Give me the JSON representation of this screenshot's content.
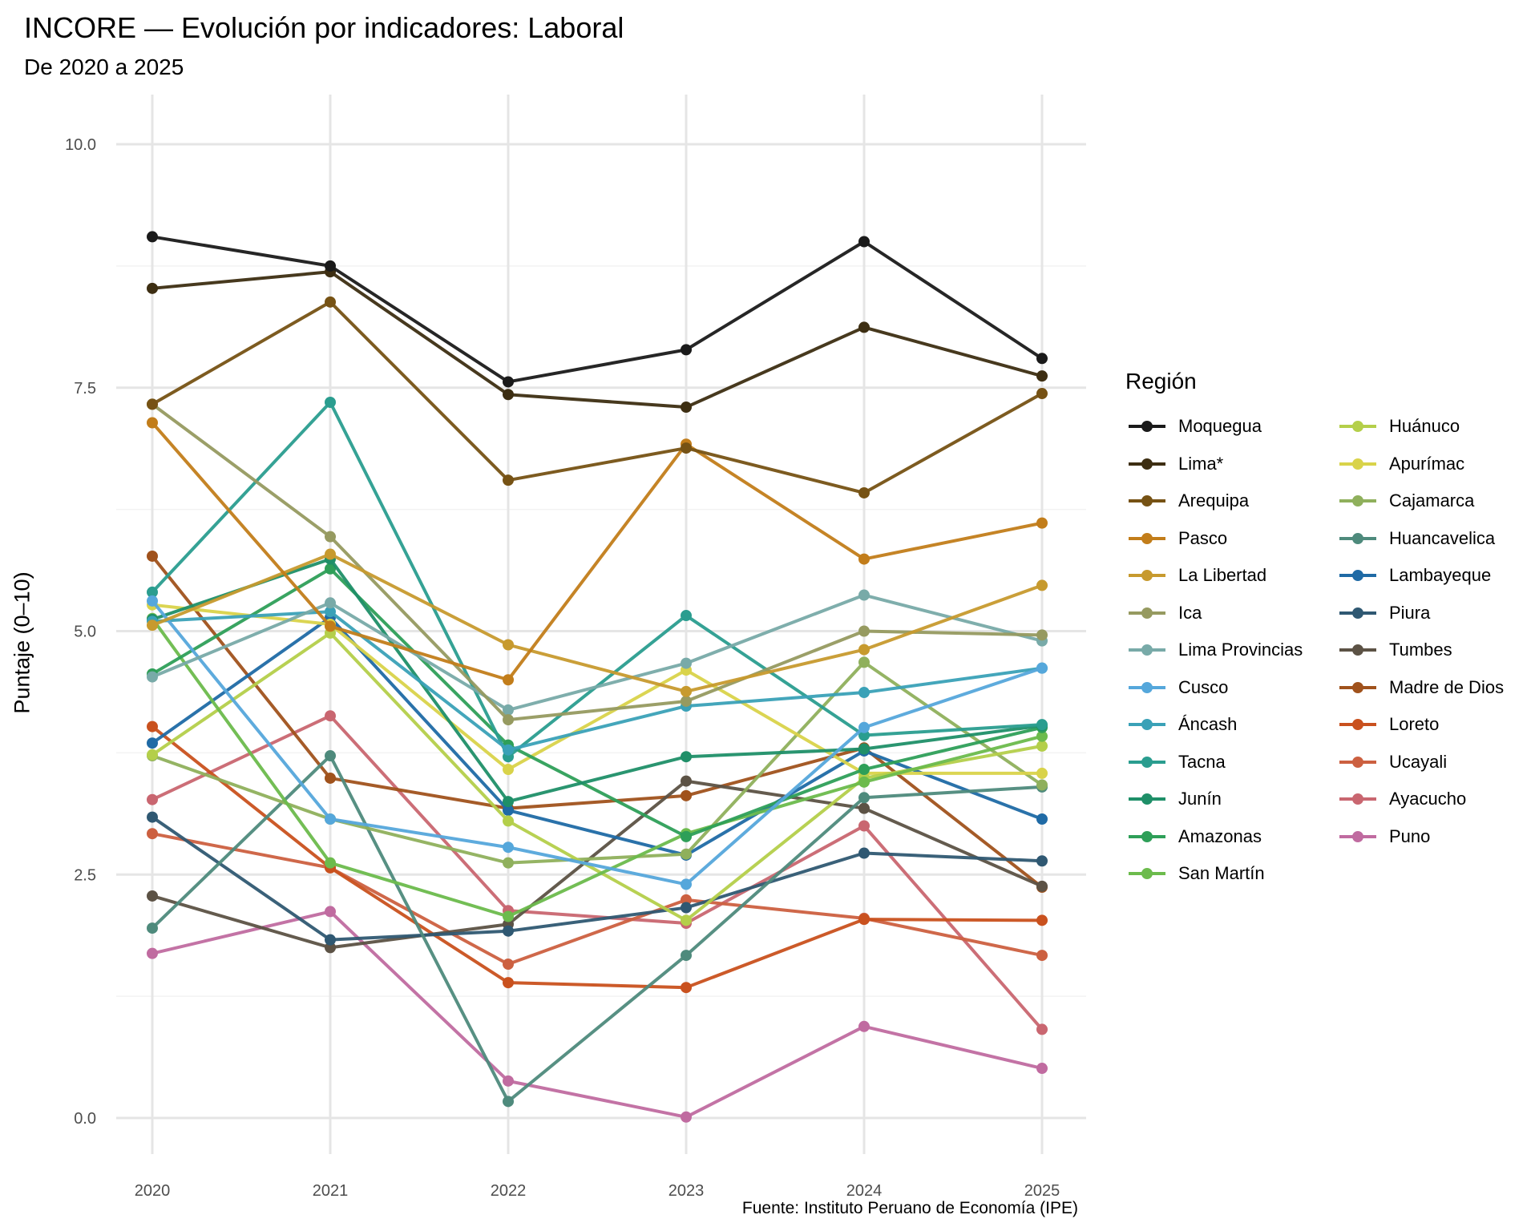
{
  "chart_data": {
    "type": "line",
    "title": "INCORE — Evolución por indicadores: Laboral",
    "subtitle": "De 2020 a 2025",
    "caption": "Fuente: Instituto Peruano de Economía (IPE)",
    "xlabel": "",
    "ylabel": "Puntaje (0–10)",
    "legend_title": "Región",
    "legend_position": "right",
    "grid": true,
    "x": [
      2020,
      2021,
      2022,
      2023,
      2024,
      2025
    ],
    "x_tick_labels": [
      "2020",
      "2021",
      "2022",
      "2023",
      "2024",
      "2025"
    ],
    "xlim": [
      2019.8,
      2025.25
    ],
    "ylim": [
      -0.35,
      10.8
    ],
    "y_ticks": [
      0,
      2.5,
      5,
      7.5,
      10
    ],
    "y_tick_labels": [
      "0.0",
      "2.5",
      "5.0",
      "7.5",
      "10.0"
    ],
    "series": [
      {
        "name": "Moquegua",
        "color": "#1a1a1a",
        "values": [
          9.05,
          8.75,
          7.56,
          7.89,
          9.0,
          7.8
        ]
      },
      {
        "name": "Lima*",
        "color": "#3d2e12",
        "values": [
          8.52,
          8.69,
          7.43,
          7.3,
          8.12,
          7.62
        ]
      },
      {
        "name": "Arequipa",
        "color": "#765214",
        "values": [
          7.33,
          8.38,
          6.55,
          6.88,
          6.42,
          7.44
        ]
      },
      {
        "name": "Pasco",
        "color": "#c27d1a",
        "values": [
          7.14,
          5.05,
          4.5,
          6.92,
          5.74,
          6.11
        ]
      },
      {
        "name": "La Libertad",
        "color": "#c79a2e",
        "values": [
          5.06,
          5.79,
          4.86,
          4.38,
          4.81,
          5.47
        ]
      },
      {
        "name": "Ica",
        "color": "#969a60",
        "values": [
          7.33,
          5.97,
          4.09,
          4.28,
          5.0,
          4.96
        ]
      },
      {
        "name": "Lima Provincias",
        "color": "#78aaa8",
        "values": [
          4.53,
          5.29,
          4.19,
          4.67,
          5.37,
          4.9
        ]
      },
      {
        "name": "Cusco",
        "color": "#55a7db",
        "values": [
          5.31,
          3.07,
          2.78,
          2.4,
          4.01,
          4.62
        ]
      },
      {
        "name": "Áncash",
        "color": "#3aa1b7",
        "values": [
          5.1,
          5.2,
          3.78,
          4.23,
          4.37,
          4.62
        ]
      },
      {
        "name": "Tacna",
        "color": "#2a9d8f",
        "values": [
          5.4,
          7.35,
          3.71,
          5.16,
          3.93,
          4.04
        ]
      },
      {
        "name": "Junín",
        "color": "#1f8f68",
        "values": [
          5.12,
          5.74,
          3.25,
          3.71,
          3.79,
          4.03
        ]
      },
      {
        "name": "Amazonas",
        "color": "#2e9f58",
        "values": [
          4.56,
          5.64,
          3.83,
          2.89,
          3.58,
          4.01
        ]
      },
      {
        "name": "San Martín",
        "color": "#6cbb4c",
        "values": [
          5.13,
          2.62,
          2.07,
          2.92,
          3.45,
          3.92
        ]
      },
      {
        "name": "Huánuco",
        "color": "#b4cf4a",
        "values": [
          3.73,
          4.98,
          3.05,
          2.03,
          3.49,
          3.82
        ]
      },
      {
        "name": "Apurímac",
        "color": "#d9d34a",
        "values": [
          5.27,
          5.07,
          3.58,
          4.6,
          3.54,
          3.54
        ]
      },
      {
        "name": "Cajamarca",
        "color": "#8fb05c",
        "values": [
          3.72,
          3.07,
          2.62,
          2.71,
          4.68,
          3.42
        ]
      },
      {
        "name": "Huancavelica",
        "color": "#4e8a7c",
        "values": [
          1.95,
          3.72,
          0.17,
          1.67,
          3.29,
          3.4
        ]
      },
      {
        "name": "Lambayeque",
        "color": "#1f6aa5",
        "values": [
          3.85,
          5.14,
          3.16,
          2.7,
          3.77,
          3.07
        ]
      },
      {
        "name": "Piura",
        "color": "#2f5872",
        "values": [
          3.09,
          1.83,
          1.92,
          2.16,
          2.72,
          2.64
        ]
      },
      {
        "name": "Tumbes",
        "color": "#5c5245",
        "values": [
          2.28,
          1.75,
          1.99,
          3.46,
          3.18,
          2.38
        ]
      },
      {
        "name": "Madre de Dios",
        "color": "#a0521c",
        "values": [
          5.77,
          3.49,
          3.18,
          3.31,
          3.8,
          2.37
        ]
      },
      {
        "name": "Loreto",
        "color": "#c9511e",
        "values": [
          4.02,
          2.57,
          1.39,
          1.34,
          2.04,
          2.03
        ]
      },
      {
        "name": "Ucayali",
        "color": "#cc6040",
        "values": [
          2.92,
          2.57,
          1.58,
          2.24,
          2.05,
          1.67
        ]
      },
      {
        "name": "Ayacucho",
        "color": "#c96670",
        "values": [
          3.27,
          4.13,
          2.13,
          2.0,
          3.0,
          0.91
        ]
      },
      {
        "name": "Puno",
        "color": "#c06ba0",
        "values": [
          1.69,
          2.12,
          0.38,
          0.01,
          0.94,
          0.51
        ]
      }
    ]
  }
}
